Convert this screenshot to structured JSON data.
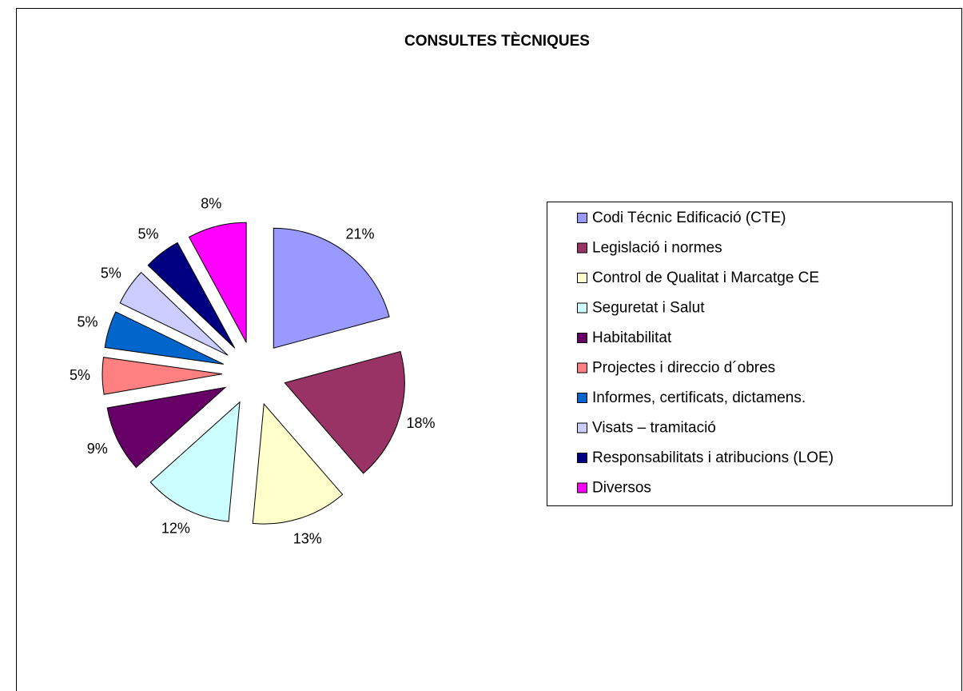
{
  "chart_data": {
    "type": "pie",
    "title": "CONSULTES TÈCNIQUES",
    "categories": [
      "Codi Técnic Edificació   (CTE)",
      "Legislació i normes",
      "Control de Qualitat i Marcatge CE",
      "Seguretat i Salut",
      "Habitabilitat",
      "Projectes i direccio d´obres",
      "Informes, certificats, dictamens.",
      "Visats – tramitació",
      "Responsabilitats i atribucions (LOE)",
      "Diversos"
    ],
    "values": [
      21,
      18,
      13,
      12,
      9,
      5,
      5,
      5,
      5,
      8
    ],
    "value_labels": [
      "21%",
      "18%",
      "13%",
      "12%",
      "9%",
      "5%",
      "5%",
      "5%",
      "5%",
      "8%"
    ],
    "colors": [
      "#9999ff",
      "#993366",
      "#ffffcc",
      "#ccffff",
      "#660066",
      "#ff8080",
      "#0066cc",
      "#ccccff",
      "#000080",
      "#ff00ff"
    ],
    "legend": "right"
  }
}
